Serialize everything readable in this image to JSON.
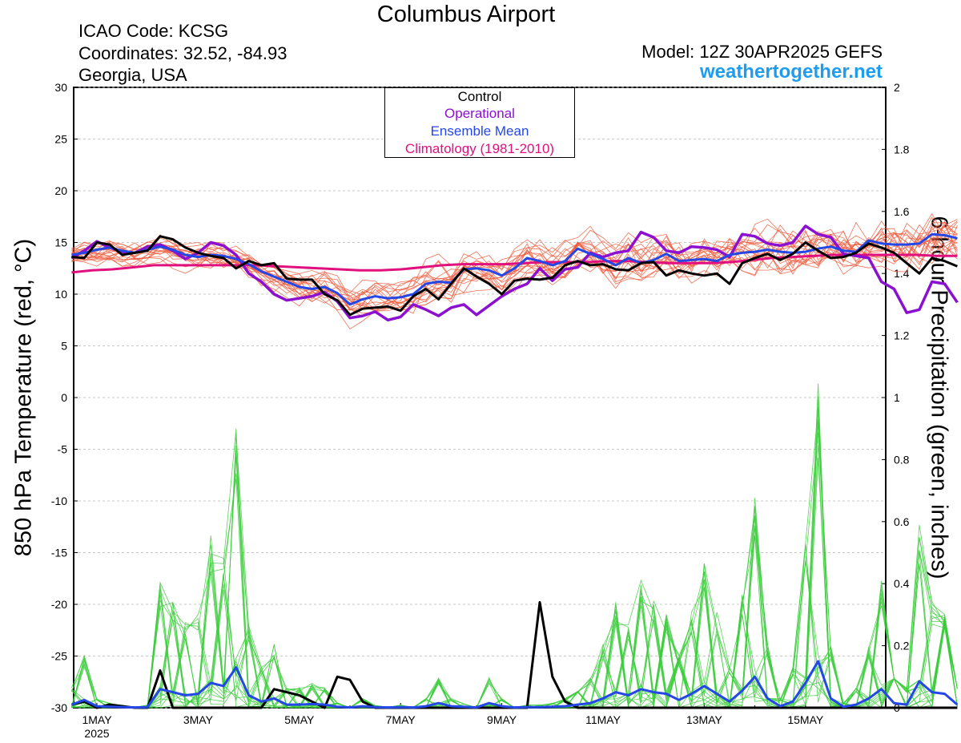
{
  "header": {
    "title": "Columbus Airport",
    "icao": "ICAO Code: KCSG",
    "coordinates": "Coordinates: 32.52, -84.93",
    "region": "Georgia, USA",
    "model": "Model: 12Z 30APR2025 GEFS",
    "site": "weathertogether.net"
  },
  "colors": {
    "control": "#000000",
    "operational": "#8b10cf",
    "ensemble_mean": "#2447e6",
    "climatology": "#e0107e",
    "members_temp": "#f05a3c",
    "members_precip": "#3ccc3c",
    "site": "#1e9cf0"
  },
  "chart_data": {
    "type": "line",
    "title": "Columbus Airport",
    "ylabel": "850 hPa Temperature (red, °C)",
    "y2label": "6-hour Precipitation (green, inches)",
    "ylim": [
      -30,
      30
    ],
    "y2lim": [
      0,
      2
    ],
    "yticks": [
      "30",
      "25",
      "20",
      "15",
      "10",
      "5",
      "0",
      "-5",
      "-10",
      "-15",
      "-20",
      "-25",
      "-30"
    ],
    "y2ticks": [
      "2",
      "1.8",
      "1.6",
      "1.4",
      "1.2",
      "1",
      "0.8",
      "0.6",
      "0.4",
      "0.2",
      "0"
    ],
    "xticks": [
      {
        "label": "1MAY",
        "sub": "2025",
        "day": 1
      },
      {
        "label": "3MAY",
        "sub": "",
        "day": 3
      },
      {
        "label": "5MAY",
        "sub": "",
        "day": 5
      },
      {
        "label": "7MAY",
        "sub": "",
        "day": 7
      },
      {
        "label": "9MAY",
        "sub": "",
        "day": 9
      },
      {
        "label": "11MAY",
        "sub": "",
        "day": 11
      },
      {
        "label": "13MAY",
        "sub": "",
        "day": 13
      },
      {
        "label": "15MAY",
        "sub": "",
        "day": 15
      }
    ],
    "x_start": "2025-04-30 12Z",
    "x_step_hours": 6,
    "legend": [
      "Control",
      "Operational",
      "Ensemble Mean",
      "Climatology (1981-2010)"
    ],
    "legend_position": "top-center",
    "series": [
      {
        "name": "Control",
        "axis": "temperature",
        "values": [
          13.6,
          13.5,
          15.0,
          14.8,
          13.8,
          14.0,
          14.2,
          15.6,
          15.3,
          14.5,
          14.0,
          13.7,
          13.5,
          12.5,
          13.2,
          12.8,
          13.0,
          11.5,
          11.4,
          11.4,
          10.0,
          9.4,
          8.0,
          8.6,
          8.7,
          8.8,
          8.4,
          9.8,
          10.5,
          9.5,
          11.0,
          12.5,
          11.7,
          11.0,
          10.0,
          11.3,
          11.5,
          11.4,
          11.6,
          12.8,
          13.2,
          12.8,
          12.9,
          12.4,
          12.3,
          13.0,
          13.1,
          11.8,
          12.3,
          12.0,
          11.8,
          12.0,
          11.0,
          13.0,
          13.5,
          13.9,
          13.3,
          13.9,
          15.0,
          14.2,
          13.5,
          13.6,
          14.0,
          14.9,
          14.5,
          14.0,
          13.0,
          12.0,
          13.5,
          13.2,
          12.7
        ]
      },
      {
        "name": "Operational",
        "axis": "temperature",
        "values": [
          13.5,
          14.2,
          15.1,
          14.5,
          14.1,
          14.0,
          14.6,
          14.8,
          14.2,
          13.4,
          14.0,
          15.0,
          14.7,
          13.8,
          12.0,
          11.2,
          10.0,
          9.4,
          9.6,
          9.8,
          10.2,
          9.3,
          7.7,
          7.9,
          8.3,
          7.5,
          7.8,
          9.0,
          8.5,
          7.9,
          8.7,
          9.0,
          8.0,
          8.9,
          9.8,
          10.5,
          11.0,
          12.5,
          11.3,
          12.4,
          12.6,
          14.0,
          13.6,
          14.0,
          14.2,
          16.0,
          15.5,
          14.2,
          14.0,
          14.6,
          14.5,
          14.3,
          13.6,
          15.8,
          15.6,
          14.9,
          14.7,
          15.0,
          16.6,
          15.8,
          15.5,
          13.9,
          13.7,
          13.5,
          11.2,
          10.5,
          8.2,
          8.5,
          11.2,
          11.0,
          9.2
        ]
      },
      {
        "name": "Ensemble Mean",
        "axis": "temperature",
        "values": [
          13.8,
          14.0,
          14.3,
          14.5,
          14.2,
          14.0,
          14.3,
          14.6,
          14.3,
          13.8,
          13.6,
          13.8,
          13.7,
          13.4,
          12.9,
          12.2,
          11.7,
          11.2,
          10.7,
          10.5,
          10.7,
          10.1,
          9.0,
          9.5,
          9.8,
          9.6,
          9.7,
          10.0,
          11.0,
          11.2,
          11.1,
          12.4,
          12.5,
          12.3,
          11.8,
          12.5,
          13.5,
          13.2,
          12.8,
          13.2,
          14.4,
          13.9,
          13.4,
          12.8,
          13.5,
          13.0,
          13.3,
          13.9,
          13.2,
          13.3,
          13.4,
          13.2,
          13.8,
          14.0,
          14.1,
          14.3,
          14.1,
          14.0,
          14.1,
          14.4,
          14.6,
          14.2,
          14.1,
          15.2,
          14.9,
          14.8,
          14.8,
          14.9,
          15.8,
          15.7,
          15.4
        ]
      },
      {
        "name": "Climatology (1981-2010)",
        "axis": "temperature",
        "values": [
          12.1,
          12.3,
          12.4,
          12.6,
          12.8,
          12.8,
          12.8,
          12.8,
          12.8,
          12.8,
          12.7,
          12.6,
          12.5,
          12.4,
          12.3,
          12.3,
          12.4,
          12.6,
          12.8,
          12.9,
          12.9,
          12.9,
          13.0,
          13.1,
          13.1,
          13.1,
          13.2,
          13.2,
          13.1,
          13.0,
          13.0,
          13.0,
          13.1,
          13.3,
          13.5,
          13.6,
          13.7,
          13.8,
          13.8,
          13.8,
          13.8,
          13.8,
          13.7,
          13.7
        ]
      },
      {
        "name": "Control",
        "axis": "precipitation",
        "values": [
          0.01,
          0.02,
          0,
          0.01,
          0.005,
          0,
          0,
          0.12,
          0,
          0,
          0,
          0,
          0,
          0,
          0,
          0,
          0.06,
          0.05,
          0.04,
          0.02,
          0,
          0.1,
          0.09,
          0.02,
          0,
          0,
          0,
          0,
          0,
          0,
          0,
          0,
          0,
          0,
          0,
          0,
          0,
          0.34,
          0.1,
          0.02,
          0,
          0,
          0,
          0,
          0,
          0,
          0,
          0,
          0,
          0,
          0,
          0,
          0,
          0,
          0,
          0,
          0,
          0,
          0,
          0,
          0,
          0,
          0,
          0,
          0,
          0,
          0,
          0,
          0,
          0,
          0
        ]
      },
      {
        "name": "Ensemble Mean",
        "axis": "precipitation",
        "values": [
          0.01,
          0.025,
          0.005,
          0.003,
          0.002,
          0.001,
          0.002,
          0.06,
          0.05,
          0.04,
          0.045,
          0.08,
          0.07,
          0.13,
          0.04,
          0.02,
          0.03,
          0.01,
          0.01,
          0.012,
          0.01,
          0.003,
          0.001,
          0.005,
          0.002,
          0.001,
          0.002,
          0.001,
          0.005,
          0.015,
          0.005,
          0.003,
          0.001,
          0.015,
          0.005,
          0.001,
          0.002,
          0.002,
          0.003,
          0.005,
          0.01,
          0.015,
          0.03,
          0.05,
          0.04,
          0.06,
          0.05,
          0.045,
          0.025,
          0.045,
          0.07,
          0.045,
          0.02,
          0.055,
          0.1,
          0.03,
          0.005,
          0.02,
          0.08,
          0.15,
          0.03,
          0.003,
          0.01,
          0.03,
          0.06,
          0.015,
          0.01,
          0.085,
          0.05,
          0.045,
          0.01
        ]
      }
    ]
  }
}
